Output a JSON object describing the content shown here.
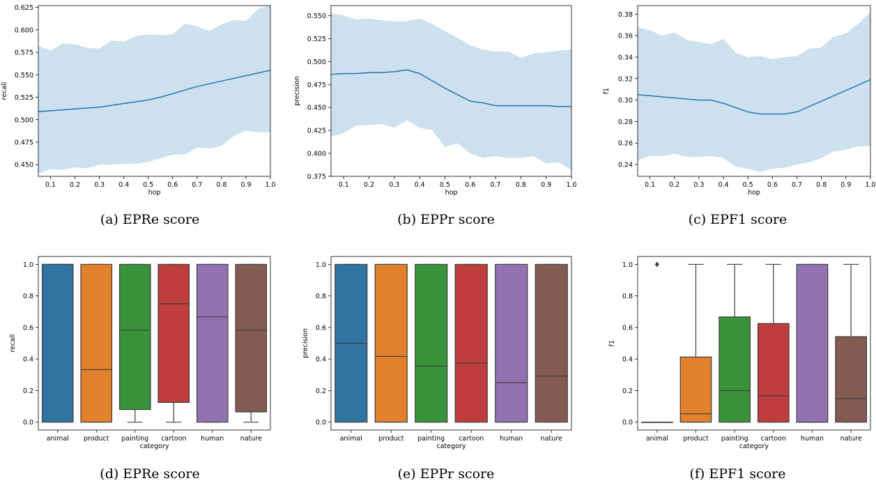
{
  "chart_data": [
    {
      "type": "line",
      "caption": "(a) EPRe score",
      "xlabel": "hop",
      "ylabel": "recall",
      "xlim": [
        0.05,
        1.0
      ],
      "ylim": [
        0.437,
        0.627
      ],
      "xticks": [
        0.1,
        0.2,
        0.3,
        0.4,
        0.5,
        0.6,
        0.7,
        0.8,
        0.9,
        1.0
      ],
      "yticks": [
        0.45,
        0.475,
        0.5,
        0.525,
        0.55,
        0.575,
        0.6,
        0.625
      ],
      "band_color": "#cde0ee",
      "line_color": "#1f77b4",
      "x": [
        0.05,
        0.1,
        0.15,
        0.2,
        0.25,
        0.3,
        0.35,
        0.4,
        0.45,
        0.5,
        0.55,
        0.6,
        0.65,
        0.7,
        0.75,
        0.8,
        0.85,
        0.9,
        0.95,
        1.0
      ],
      "mean": [
        0.509,
        0.51,
        0.511,
        0.512,
        0.513,
        0.514,
        0.516,
        0.518,
        0.52,
        0.522,
        0.525,
        0.529,
        0.533,
        0.537,
        0.54,
        0.543,
        0.546,
        0.549,
        0.552,
        0.555
      ],
      "upper": [
        0.582,
        0.577,
        0.585,
        0.584,
        0.58,
        0.579,
        0.588,
        0.587,
        0.593,
        0.595,
        0.594,
        0.595,
        0.607,
        0.604,
        0.599,
        0.606,
        0.611,
        0.61,
        0.623,
        0.628
      ],
      "lower": [
        0.44,
        0.445,
        0.444,
        0.447,
        0.446,
        0.45,
        0.45,
        0.451,
        0.451,
        0.453,
        0.457,
        0.461,
        0.461,
        0.469,
        0.468,
        0.471,
        0.482,
        0.488,
        0.486,
        0.486
      ]
    },
    {
      "type": "line",
      "caption": "(b) EPPr score",
      "xlabel": "hop",
      "ylabel": "precision",
      "xlim": [
        0.05,
        1.0
      ],
      "ylim": [
        0.375,
        0.561
      ],
      "xticks": [
        0.1,
        0.2,
        0.3,
        0.4,
        0.5,
        0.6,
        0.7,
        0.8,
        0.9,
        1.0
      ],
      "yticks": [
        0.375,
        0.4,
        0.425,
        0.45,
        0.475,
        0.5,
        0.525,
        0.55
      ],
      "band_color": "#cde0ee",
      "line_color": "#1f77b4",
      "x": [
        0.05,
        0.1,
        0.15,
        0.2,
        0.25,
        0.3,
        0.35,
        0.4,
        0.45,
        0.5,
        0.55,
        0.6,
        0.65,
        0.7,
        0.75,
        0.8,
        0.85,
        0.9,
        0.95,
        1.0
      ],
      "mean": [
        0.486,
        0.487,
        0.487,
        0.488,
        0.488,
        0.489,
        0.491,
        0.487,
        0.479,
        0.471,
        0.464,
        0.457,
        0.455,
        0.452,
        0.452,
        0.452,
        0.452,
        0.452,
        0.451,
        0.451
      ],
      "upper": [
        0.553,
        0.55,
        0.546,
        0.547,
        0.545,
        0.544,
        0.544,
        0.547,
        0.541,
        0.533,
        0.526,
        0.518,
        0.513,
        0.511,
        0.511,
        0.504,
        0.509,
        0.51,
        0.512,
        0.513
      ],
      "lower": [
        0.418,
        0.422,
        0.43,
        0.431,
        0.432,
        0.428,
        0.436,
        0.428,
        0.425,
        0.407,
        0.411,
        0.4,
        0.395,
        0.397,
        0.395,
        0.395,
        0.397,
        0.389,
        0.39,
        0.382
      ]
    },
    {
      "type": "line",
      "caption": "(c) EPF1 score",
      "xlabel": "hop",
      "ylabel": "f1",
      "xlim": [
        0.05,
        1.0
      ],
      "ylim": [
        0.229,
        0.388
      ],
      "xticks": [
        0.1,
        0.2,
        0.3,
        0.4,
        0.5,
        0.6,
        0.7,
        0.8,
        0.9,
        1.0
      ],
      "yticks": [
        0.24,
        0.26,
        0.28,
        0.3,
        0.32,
        0.34,
        0.36,
        0.38
      ],
      "band_color": "#cde0ee",
      "line_color": "#1f77b4",
      "x": [
        0.05,
        0.1,
        0.15,
        0.2,
        0.25,
        0.3,
        0.35,
        0.4,
        0.45,
        0.5,
        0.55,
        0.6,
        0.65,
        0.7,
        0.75,
        0.8,
        0.85,
        0.9,
        0.95,
        1.0
      ],
      "mean": [
        0.305,
        0.304,
        0.303,
        0.302,
        0.301,
        0.3,
        0.3,
        0.297,
        0.293,
        0.289,
        0.287,
        0.287,
        0.287,
        0.289,
        0.294,
        0.299,
        0.304,
        0.309,
        0.314,
        0.319
      ],
      "upper": [
        0.368,
        0.365,
        0.36,
        0.363,
        0.356,
        0.354,
        0.352,
        0.357,
        0.344,
        0.34,
        0.341,
        0.338,
        0.34,
        0.341,
        0.348,
        0.349,
        0.359,
        0.362,
        0.371,
        0.382
      ],
      "lower": [
        0.244,
        0.248,
        0.248,
        0.25,
        0.247,
        0.247,
        0.248,
        0.246,
        0.238,
        0.236,
        0.233,
        0.236,
        0.237,
        0.24,
        0.242,
        0.246,
        0.252,
        0.254,
        0.257,
        0.257
      ]
    },
    {
      "type": "box",
      "caption": "(d) EPRe score",
      "xlabel": "category",
      "ylabel": "recall",
      "ylim": [
        -0.05,
        1.05
      ],
      "yticks": [
        0.0,
        0.2,
        0.4,
        0.6,
        0.8,
        1.0
      ],
      "categories": [
        "animal",
        "product",
        "painting",
        "cartoon",
        "human",
        "nature"
      ],
      "colors": [
        "#3274a1",
        "#e1812c",
        "#3a923a",
        "#c03d3e",
        "#9372b2",
        "#845b53"
      ],
      "boxes": [
        {
          "whislo": 0.0,
          "q1": 0.0,
          "med": 1.0,
          "q3": 1.0,
          "whishi": 1.0,
          "fliers": []
        },
        {
          "whislo": 0.0,
          "q1": 0.0,
          "med": 0.333,
          "q3": 1.0,
          "whishi": 1.0,
          "fliers": []
        },
        {
          "whislo": 0.0,
          "q1": 0.08,
          "med": 0.583,
          "q3": 1.0,
          "whishi": 1.0,
          "fliers": []
        },
        {
          "whislo": 0.0,
          "q1": 0.125,
          "med": 0.75,
          "q3": 1.0,
          "whishi": 1.0,
          "fliers": []
        },
        {
          "whislo": 0.0,
          "q1": 0.0,
          "med": 0.667,
          "q3": 1.0,
          "whishi": 1.0,
          "fliers": []
        },
        {
          "whislo": 0.0,
          "q1": 0.065,
          "med": 0.583,
          "q3": 1.0,
          "whishi": 1.0,
          "fliers": []
        }
      ]
    },
    {
      "type": "box",
      "caption": "(e) EPPr score",
      "xlabel": "category",
      "ylabel": "precision",
      "ylim": [
        -0.05,
        1.05
      ],
      "yticks": [
        0.0,
        0.2,
        0.4,
        0.6,
        0.8,
        1.0
      ],
      "categories": [
        "animal",
        "product",
        "painting",
        "cartoon",
        "human",
        "nature"
      ],
      "colors": [
        "#3274a1",
        "#e1812c",
        "#3a923a",
        "#c03d3e",
        "#9372b2",
        "#845b53"
      ],
      "boxes": [
        {
          "whislo": 0.0,
          "q1": 0.0,
          "med": 0.5,
          "q3": 1.0,
          "whishi": 1.0,
          "fliers": []
        },
        {
          "whislo": 0.0,
          "q1": 0.0,
          "med": 0.417,
          "q3": 1.0,
          "whishi": 1.0,
          "fliers": []
        },
        {
          "whislo": 0.0,
          "q1": 0.0,
          "med": 0.355,
          "q3": 1.0,
          "whishi": 1.0,
          "fliers": []
        },
        {
          "whislo": 0.0,
          "q1": 0.0,
          "med": 0.375,
          "q3": 1.0,
          "whishi": 1.0,
          "fliers": []
        },
        {
          "whislo": 0.0,
          "q1": 0.0,
          "med": 0.25,
          "q3": 1.0,
          "whishi": 1.0,
          "fliers": []
        },
        {
          "whislo": 0.0,
          "q1": 0.0,
          "med": 0.292,
          "q3": 1.0,
          "whishi": 1.0,
          "fliers": []
        }
      ]
    },
    {
      "type": "box",
      "caption": "(f) EPF1 score",
      "xlabel": "category",
      "ylabel": "f1",
      "ylim": [
        -0.05,
        1.05
      ],
      "yticks": [
        0.0,
        0.2,
        0.4,
        0.6,
        0.8,
        1.0
      ],
      "categories": [
        "animal",
        "product",
        "painting",
        "cartoon",
        "human",
        "nature"
      ],
      "colors": [
        "#3274a1",
        "#e1812c",
        "#3a923a",
        "#c03d3e",
        "#9372b2",
        "#845b53"
      ],
      "boxes": [
        {
          "whislo": 0.0,
          "q1": 0.0,
          "med": 0.0,
          "q3": 0.0,
          "whishi": 0.0,
          "fliers": [
            1.0
          ]
        },
        {
          "whislo": 0.0,
          "q1": 0.0,
          "med": 0.053,
          "q3": 0.413,
          "whishi": 1.0,
          "fliers": []
        },
        {
          "whislo": 0.0,
          "q1": 0.0,
          "med": 0.2,
          "q3": 0.667,
          "whishi": 1.0,
          "fliers": []
        },
        {
          "whislo": 0.0,
          "q1": 0.0,
          "med": 0.167,
          "q3": 0.625,
          "whishi": 1.0,
          "fliers": []
        },
        {
          "whislo": 0.0,
          "q1": 0.0,
          "med": 0.0,
          "q3": 1.0,
          "whishi": 1.0,
          "fliers": []
        },
        {
          "whislo": 0.0,
          "q1": 0.0,
          "med": 0.15,
          "q3": 0.542,
          "whishi": 1.0,
          "fliers": []
        }
      ]
    }
  ]
}
